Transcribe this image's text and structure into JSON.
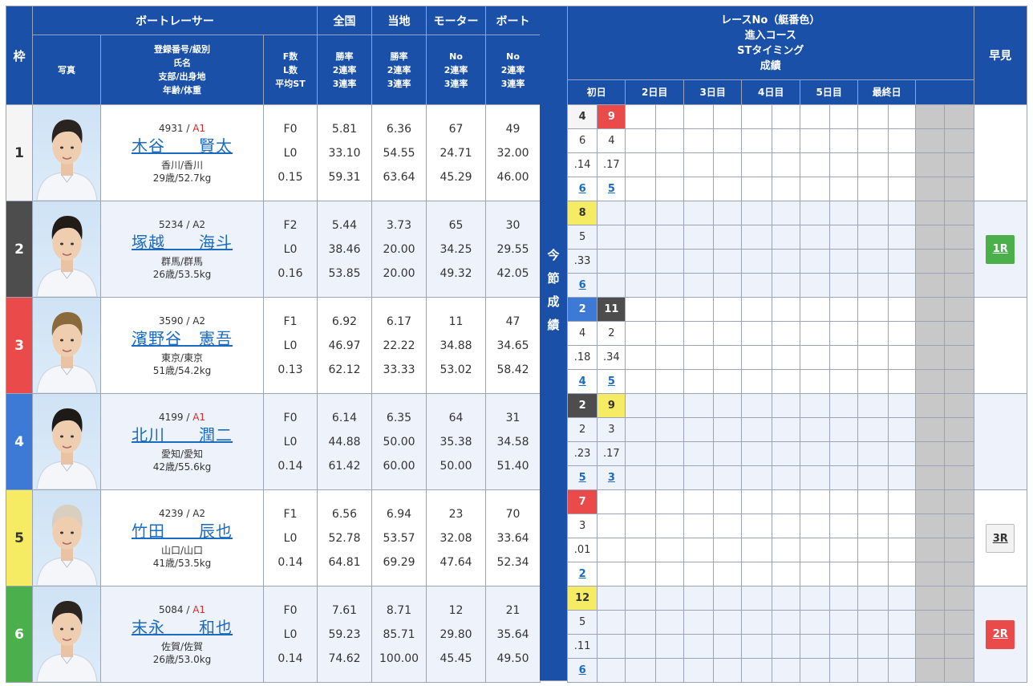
{
  "header": {
    "frame": "枠",
    "boat_racer": "ボートレーサー",
    "photo": "写真",
    "racer_info_lines": [
      "登録番号/級別",
      "氏名",
      "支部/出身地",
      "年齢/体重"
    ],
    "fl_lines": [
      "F数",
      "L数",
      "平均ST"
    ],
    "national": "全国",
    "national_sub": [
      "勝率",
      "2連率",
      "3連率"
    ],
    "local": "当地",
    "local_sub": [
      "勝率",
      "2連率",
      "3連率"
    ],
    "motor": "モーター",
    "motor_sub": [
      "No",
      "2連率",
      "3連率"
    ],
    "boat": "ボート",
    "boat_sub": [
      "No",
      "2連率",
      "3連率"
    ],
    "results_lines": [
      "レースNo（艇番色）",
      "進入コース",
      "STタイミング",
      "成績"
    ],
    "days": [
      "初日",
      "2日目",
      "3日目",
      "4日目",
      "5日目",
      "最終日"
    ],
    "hayami": "早見",
    "vertical": [
      "今",
      "節",
      "成",
      "績"
    ]
  },
  "racers": [
    {
      "frame": "1",
      "reg": "4931",
      "class": "A1",
      "name": "木谷　　賢太",
      "home": "香川/香川",
      "age_weight": "29歳/52.7kg",
      "f": "F0",
      "l": "L0",
      "st": "0.15",
      "nat": [
        "5.81",
        "33.10",
        "59.31"
      ],
      "loc": [
        "6.36",
        "54.55",
        "63.64"
      ],
      "motor": [
        "67",
        "24.71",
        "45.29"
      ],
      "boat": [
        "49",
        "32.00",
        "46.00"
      ],
      "races": [
        {
          "no": "4",
          "color": "1",
          "course": "6",
          "st": ".14",
          "result": "6"
        },
        {
          "no": "9",
          "color": "3",
          "course": "4",
          "st": ".17",
          "result": "5"
        }
      ],
      "hayami": ""
    },
    {
      "frame": "2",
      "reg": "5234",
      "class": "A2",
      "name": "塚越　　海斗",
      "home": "群馬/群馬",
      "age_weight": "26歳/53.5kg",
      "f": "F2",
      "l": "L0",
      "st": "0.16",
      "nat": [
        "5.44",
        "38.46",
        "53.85"
      ],
      "loc": [
        "3.73",
        "20.00",
        "20.00"
      ],
      "motor": [
        "65",
        "34.25",
        "49.32"
      ],
      "boat": [
        "30",
        "29.55",
        "42.05"
      ],
      "races": [
        {
          "no": "8",
          "color": "5",
          "course": "5",
          "st": ".33",
          "result": "6"
        }
      ],
      "hayami": "1R"
    },
    {
      "frame": "3",
      "reg": "3590",
      "class": "A2",
      "name": "濱野谷　憲吾",
      "home": "東京/東京",
      "age_weight": "51歳/54.2kg",
      "f": "F1",
      "l": "L0",
      "st": "0.13",
      "nat": [
        "6.92",
        "46.97",
        "62.12"
      ],
      "loc": [
        "6.17",
        "22.22",
        "33.33"
      ],
      "motor": [
        "11",
        "34.88",
        "53.02"
      ],
      "boat": [
        "47",
        "34.65",
        "58.42"
      ],
      "races": [
        {
          "no": "2",
          "color": "4",
          "course": "4",
          "st": ".18",
          "result": "4"
        },
        {
          "no": "11",
          "color": "2",
          "course": "2",
          "st": ".34",
          "result": "5"
        }
      ],
      "hayami": ""
    },
    {
      "frame": "4",
      "reg": "4199",
      "class": "A1",
      "name": "北川　　潤二",
      "home": "愛知/愛知",
      "age_weight": "42歳/55.6kg",
      "f": "F0",
      "l": "L0",
      "st": "0.14",
      "nat": [
        "6.14",
        "44.88",
        "61.42"
      ],
      "loc": [
        "6.35",
        "50.00",
        "60.00"
      ],
      "motor": [
        "64",
        "35.38",
        "50.00"
      ],
      "boat": [
        "31",
        "34.58",
        "51.40"
      ],
      "races": [
        {
          "no": "2",
          "color": "2",
          "course": "2",
          "st": ".23",
          "result": "5"
        },
        {
          "no": "9",
          "color": "5",
          "course": "3",
          "st": ".17",
          "result": "3"
        }
      ],
      "hayami": ""
    },
    {
      "frame": "5",
      "reg": "4239",
      "class": "A2",
      "name": "竹田　　辰也",
      "home": "山口/山口",
      "age_weight": "41歳/53.5kg",
      "f": "F1",
      "l": "L0",
      "st": "0.14",
      "nat": [
        "6.56",
        "52.78",
        "64.81"
      ],
      "loc": [
        "6.94",
        "53.57",
        "69.29"
      ],
      "motor": [
        "23",
        "32.08",
        "47.64"
      ],
      "boat": [
        "70",
        "33.64",
        "52.34"
      ],
      "races": [
        {
          "no": "7",
          "color": "3",
          "course": "3",
          "st": ".01",
          "result": "2"
        }
      ],
      "hayami": "3R"
    },
    {
      "frame": "6",
      "reg": "5084",
      "class": "A1",
      "name": "末永　　和也",
      "home": "佐賀/佐賀",
      "age_weight": "26歳/53.0kg",
      "f": "F0",
      "l": "L0",
      "st": "0.14",
      "nat": [
        "7.61",
        "59.23",
        "74.62"
      ],
      "loc": [
        "8.71",
        "85.71",
        "100.00"
      ],
      "motor": [
        "12",
        "29.80",
        "45.45"
      ],
      "boat": [
        "21",
        "35.64",
        "49.50"
      ],
      "races": [
        {
          "no": "12",
          "color": "5",
          "course": "5",
          "st": ".11",
          "result": "6"
        }
      ],
      "hayami": "2R"
    }
  ],
  "colors": {
    "header_bg": "#1a50a8",
    "frame1": "#f5f5f5",
    "frame2": "#4d4d4d",
    "frame3": "#ea4a4a",
    "frame4": "#3d7ad6",
    "frame5": "#f5ec63",
    "frame6": "#4bb04b",
    "link": "#1b6bc0"
  },
  "hair_colors": [
    "#2a2420",
    "#221c18",
    "#8a6a3a",
    "#1e1a17",
    "#d8cfc0",
    "#2b2420"
  ]
}
